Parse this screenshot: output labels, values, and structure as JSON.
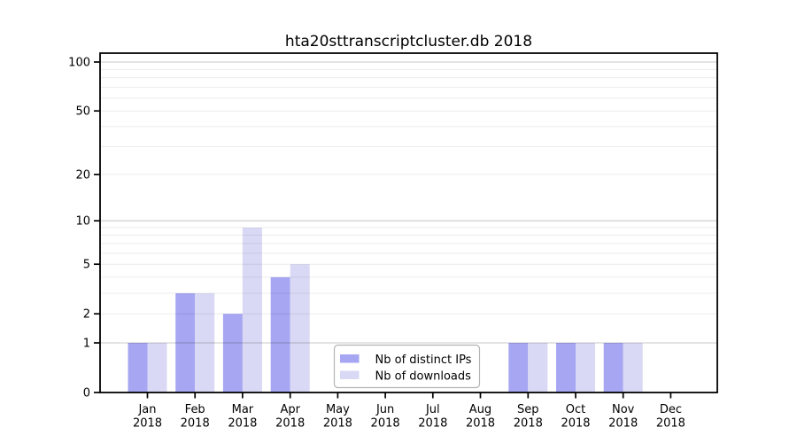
{
  "chart_data": {
    "type": "bar",
    "title": "hta20sttranscriptcluster.db 2018",
    "categories": [
      "Jan",
      "Feb",
      "Mar",
      "Apr",
      "May",
      "Jun",
      "Jul",
      "Aug",
      "Sep",
      "Oct",
      "Nov",
      "Dec"
    ],
    "category_year": "2018",
    "series": [
      {
        "name": "Nb of distinct IPs",
        "color": "#a6a6f2",
        "values": [
          1,
          3,
          2,
          4,
          0,
          0,
          0,
          0,
          1,
          1,
          1,
          0
        ]
      },
      {
        "name": "Nb of downloads",
        "color": "#d9d9f5",
        "values": [
          1,
          3,
          9,
          5,
          0,
          0,
          0,
          0,
          1,
          1,
          1,
          0
        ]
      }
    ],
    "yscale": "log1p",
    "ylim": [
      0,
      113
    ],
    "ytick_labels": [
      "0",
      "1",
      "2",
      "5",
      "10",
      "20",
      "50",
      "100"
    ],
    "ytick_values": [
      0,
      1,
      2,
      5,
      10,
      20,
      50,
      100
    ],
    "ymajor_gridlines": [
      1,
      10,
      100
    ],
    "yminor_gridlines": [
      2,
      3,
      4,
      5,
      6,
      7,
      8,
      9,
      20,
      30,
      40,
      50,
      60,
      70,
      80,
      90
    ],
    "grid": true,
    "legend_position": "lower-center",
    "colors": {
      "background": "#ffffff",
      "axis": "#000000",
      "major_grid": "#c9c9c9",
      "minor_grid": "#ececec",
      "legend_border": "#b3b3b3"
    }
  }
}
